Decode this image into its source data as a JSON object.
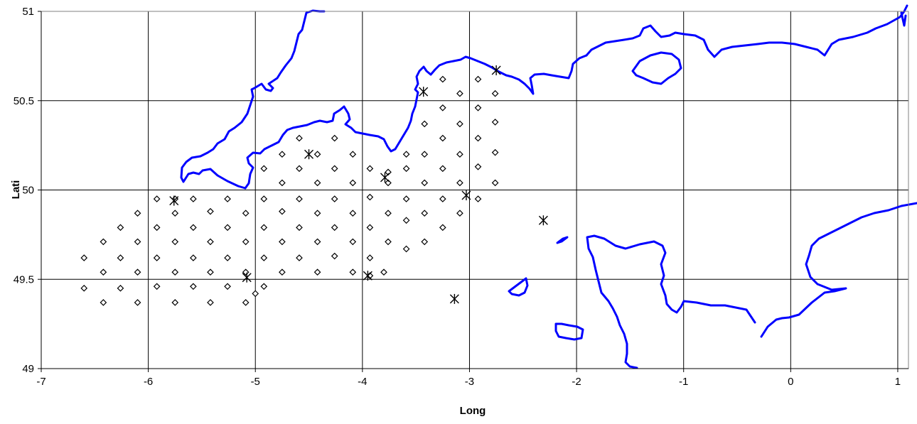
{
  "chart_data": {
    "type": "scatter",
    "xlabel": "Long",
    "ylabel": "Lati",
    "xlim": [
      -7,
      1.1
    ],
    "ylim": [
      49,
      51
    ],
    "x_ticks": [
      -7,
      -6,
      -5,
      -4,
      -3,
      -2,
      -1,
      0,
      1
    ],
    "y_ticks": [
      49,
      49.5,
      50,
      50.5,
      51
    ],
    "x_tick_labels": [
      "-7",
      "-6",
      "-5",
      "-4",
      "-3",
      "-2",
      "-1",
      "0",
      "1"
    ],
    "y_tick_labels": [
      "49",
      "49.5",
      "50",
      "50.5",
      "51"
    ],
    "grid": true,
    "legend": "none",
    "colors": {
      "coastline": "#0000ff",
      "markers": "#000000",
      "grid": "#000000"
    },
    "series": [
      {
        "marker": "diamond",
        "points": [
          [
            -6.6,
            49.62
          ],
          [
            -6.6,
            49.45
          ],
          [
            -6.42,
            49.71
          ],
          [
            -6.42,
            49.54
          ],
          [
            -6.42,
            49.37
          ],
          [
            -6.26,
            49.79
          ],
          [
            -6.26,
            49.62
          ],
          [
            -6.26,
            49.45
          ],
          [
            -6.1,
            49.87
          ],
          [
            -6.1,
            49.71
          ],
          [
            -6.1,
            49.54
          ],
          [
            -6.1,
            49.37
          ],
          [
            -5.92,
            49.95
          ],
          [
            -5.92,
            49.79
          ],
          [
            -5.92,
            49.62
          ],
          [
            -5.92,
            49.46
          ],
          [
            -5.75,
            49.95
          ],
          [
            -5.75,
            49.87
          ],
          [
            -5.75,
            49.71
          ],
          [
            -5.75,
            49.54
          ],
          [
            -5.75,
            49.37
          ],
          [
            -5.58,
            49.95
          ],
          [
            -5.58,
            49.79
          ],
          [
            -5.58,
            49.62
          ],
          [
            -5.58,
            49.46
          ],
          [
            -5.42,
            49.88
          ],
          [
            -5.42,
            49.71
          ],
          [
            -5.42,
            49.54
          ],
          [
            -5.42,
            49.37
          ],
          [
            -5.26,
            49.95
          ],
          [
            -5.26,
            49.79
          ],
          [
            -5.26,
            49.62
          ],
          [
            -5.26,
            49.46
          ],
          [
            -5.09,
            49.87
          ],
          [
            -5.09,
            49.71
          ],
          [
            -5.09,
            49.54
          ],
          [
            -5.09,
            49.37
          ],
          [
            -5.0,
            49.42
          ],
          [
            -4.92,
            50.12
          ],
          [
            -4.92,
            49.95
          ],
          [
            -4.92,
            49.79
          ],
          [
            -4.92,
            49.62
          ],
          [
            -4.92,
            49.46
          ],
          [
            -4.75,
            50.2
          ],
          [
            -4.75,
            50.04
          ],
          [
            -4.75,
            49.88
          ],
          [
            -4.75,
            49.71
          ],
          [
            -4.75,
            49.54
          ],
          [
            -4.59,
            50.29
          ],
          [
            -4.59,
            50.12
          ],
          [
            -4.59,
            49.95
          ],
          [
            -4.59,
            49.79
          ],
          [
            -4.59,
            49.62
          ],
          [
            -4.42,
            50.2
          ],
          [
            -4.42,
            50.04
          ],
          [
            -4.42,
            49.87
          ],
          [
            -4.42,
            49.71
          ],
          [
            -4.42,
            49.54
          ],
          [
            -4.26,
            50.29
          ],
          [
            -4.26,
            50.12
          ],
          [
            -4.26,
            49.95
          ],
          [
            -4.26,
            49.79
          ],
          [
            -4.26,
            49.63
          ],
          [
            -4.09,
            50.2
          ],
          [
            -4.09,
            50.04
          ],
          [
            -4.09,
            49.87
          ],
          [
            -4.09,
            49.71
          ],
          [
            -4.09,
            49.54
          ],
          [
            -3.93,
            50.12
          ],
          [
            -3.93,
            49.96
          ],
          [
            -3.93,
            49.79
          ],
          [
            -3.93,
            49.62
          ],
          [
            -3.93,
            49.52
          ],
          [
            -3.76,
            50.1
          ],
          [
            -3.76,
            50.04
          ],
          [
            -3.76,
            49.87
          ],
          [
            -3.76,
            49.71
          ],
          [
            -3.8,
            49.54
          ],
          [
            -3.59,
            50.2
          ],
          [
            -3.59,
            50.12
          ],
          [
            -3.59,
            49.95
          ],
          [
            -3.59,
            49.83
          ],
          [
            -3.59,
            49.67
          ],
          [
            -3.42,
            50.37
          ],
          [
            -3.42,
            50.2
          ],
          [
            -3.42,
            50.04
          ],
          [
            -3.42,
            49.87
          ],
          [
            -3.42,
            49.71
          ],
          [
            -3.25,
            50.62
          ],
          [
            -3.25,
            50.46
          ],
          [
            -3.25,
            50.29
          ],
          [
            -3.25,
            50.12
          ],
          [
            -3.25,
            49.95
          ],
          [
            -3.25,
            49.79
          ],
          [
            -3.09,
            50.54
          ],
          [
            -3.09,
            50.37
          ],
          [
            -3.09,
            50.2
          ],
          [
            -3.09,
            50.04
          ],
          [
            -3.09,
            49.87
          ],
          [
            -2.92,
            50.62
          ],
          [
            -2.92,
            50.46
          ],
          [
            -2.92,
            50.29
          ],
          [
            -2.92,
            50.13
          ],
          [
            -2.92,
            49.95
          ],
          [
            -2.76,
            50.54
          ],
          [
            -2.76,
            50.38
          ],
          [
            -2.76,
            50.21
          ],
          [
            -2.76,
            50.04
          ]
        ]
      },
      {
        "marker": "asterisk",
        "points": [
          [
            -5.76,
            49.94
          ],
          [
            -4.5,
            50.2
          ],
          [
            -3.43,
            50.55
          ],
          [
            -2.75,
            50.67
          ],
          [
            -3.79,
            50.07
          ],
          [
            -3.03,
            49.97
          ],
          [
            -5.08,
            49.51
          ],
          [
            -3.95,
            49.52
          ],
          [
            -2.31,
            49.83
          ],
          [
            -3.14,
            49.39
          ]
        ]
      }
    ]
  }
}
